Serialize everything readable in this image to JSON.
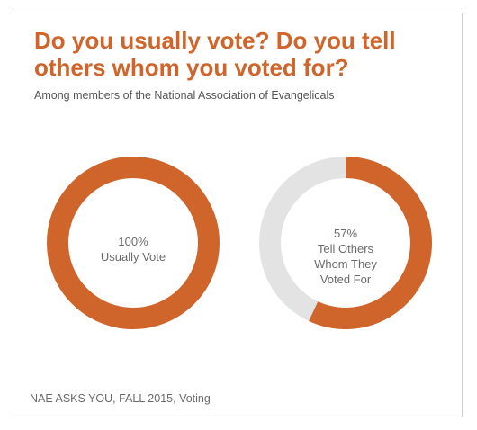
{
  "header": {
    "title": "Do you usually vote? Do you tell others whom you voted for?",
    "subtitle": "Among members of the National Association of Evangelicals"
  },
  "colors": {
    "accent": "#d0652b",
    "remainder": "#e3e3e3",
    "frame": "#cfcfcf"
  },
  "chart_data": [
    {
      "type": "pie",
      "variant": "donut",
      "value_percent": 100,
      "label_value": "100%",
      "label_lines": [
        "Usually Vote"
      ]
    },
    {
      "type": "pie",
      "variant": "donut",
      "value_percent": 57,
      "label_value": "57%",
      "label_lines": [
        "Tell Others",
        "Whom They",
        "Voted For"
      ]
    }
  ],
  "footer": {
    "source": "NAE ASKS YOU, FALL 2015, Voting"
  }
}
